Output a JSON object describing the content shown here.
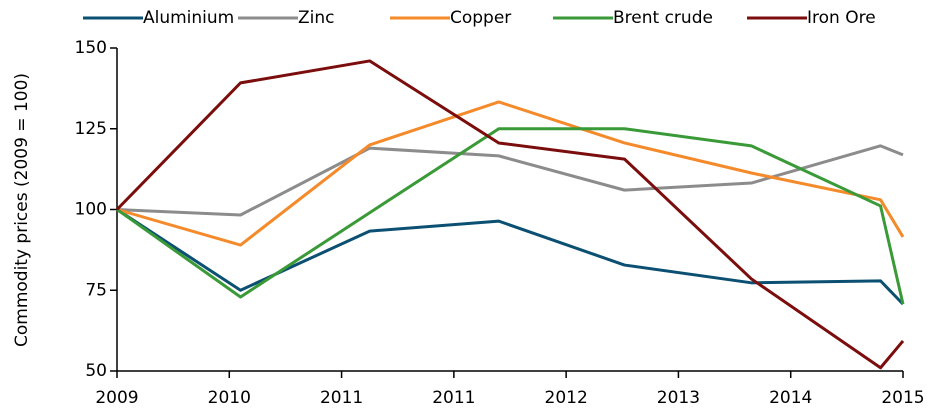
{
  "chart_data": {
    "type": "line",
    "y_label": "Commodity prices (2009 = 100)",
    "x": [
      0,
      1.1,
      2.25,
      3.4,
      4.52,
      5.65,
      6.8,
      7
    ],
    "xlim": [
      0,
      7
    ],
    "xticks": [
      {
        "value": 0,
        "label": "2009"
      },
      {
        "value": 1,
        "label": "2010"
      },
      {
        "value": 2,
        "label": "2011"
      },
      {
        "value": 3,
        "label": "2011"
      },
      {
        "value": 4,
        "label": "2012"
      },
      {
        "value": 5,
        "label": "2013"
      },
      {
        "value": 6,
        "label": "2014"
      },
      {
        "value": 7,
        "label": "2015"
      }
    ],
    "ylim": [
      50,
      150
    ],
    "yticks": [
      50,
      75,
      100,
      125,
      150
    ],
    "legend": "top",
    "series": [
      {
        "name": "Aluminium",
        "color": "#0b5072",
        "values": [
          100,
          75,
          93.3,
          96.4,
          82.8,
          77.3,
          77.9,
          70.7
        ]
      },
      {
        "name": "Zinc",
        "color": "#8c8c8c",
        "values": [
          100,
          98.3,
          119,
          116.6,
          106,
          108.2,
          119.7,
          116.9
        ]
      },
      {
        "name": "Copper",
        "color": "#f58a2b",
        "values": [
          100,
          89,
          120,
          133.3,
          120.6,
          111.3,
          103,
          91.5
        ]
      },
      {
        "name": "Brent crude",
        "color": "#3a9a37",
        "values": [
          100,
          72.9,
          99,
          125,
          125,
          119.7,
          101.1,
          70.7
        ]
      },
      {
        "name": "Iron Ore",
        "color": "#7b0d0d",
        "values": [
          100,
          139.2,
          146,
          120.6,
          115.6,
          78.5,
          51,
          59.3
        ]
      }
    ]
  }
}
